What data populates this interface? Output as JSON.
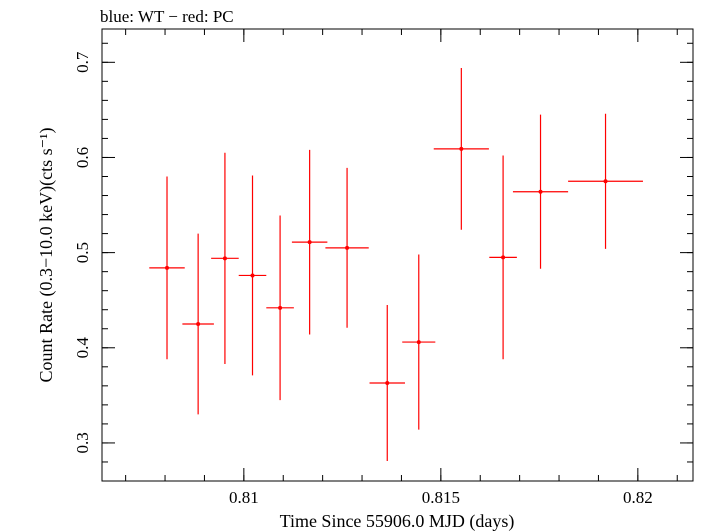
{
  "chart_data": {
    "type": "scatter",
    "title": "blue: WT − red: PC",
    "xlabel": "Time Since 55906.0 MJD (days)",
    "ylabel": "Count Rate (0.3−10.0 keV)(cts s⁻¹)",
    "xlim": [
      0.8064,
      0.8214
    ],
    "ylim": [
      0.26,
      0.735
    ],
    "xticks": [
      {
        "value": 0.81,
        "label": "0.81"
      },
      {
        "value": 0.815,
        "label": "0.815"
      },
      {
        "value": 0.82,
        "label": "0.82"
      }
    ],
    "yticks": [
      {
        "value": 0.3,
        "label": "0.3"
      },
      {
        "value": 0.4,
        "label": "0.4"
      },
      {
        "value": 0.5,
        "label": "0.5"
      },
      {
        "value": 0.6,
        "label": "0.6"
      },
      {
        "value": 0.7,
        "label": "0.7"
      }
    ],
    "x_minor_step": 0.001,
    "y_minor_step": 0.02,
    "grid": false,
    "series": [
      {
        "color": "#ff0000",
        "points": [
          {
            "x": 0.80805,
            "xerr_low": 0.00045,
            "xerr_high": 0.00045,
            "y": 0.484,
            "yerr_low": 0.096,
            "yerr_high": 0.096
          },
          {
            "x": 0.80884,
            "xerr_low": 0.0004,
            "xerr_high": 0.0004,
            "y": 0.425,
            "yerr_low": 0.095,
            "yerr_high": 0.095
          },
          {
            "x": 0.80952,
            "xerr_low": 0.00035,
            "xerr_high": 0.00035,
            "y": 0.494,
            "yerr_low": 0.111,
            "yerr_high": 0.111
          },
          {
            "x": 0.81022,
            "xerr_low": 0.00035,
            "xerr_high": 0.00035,
            "y": 0.476,
            "yerr_low": 0.105,
            "yerr_high": 0.105
          },
          {
            "x": 0.81092,
            "xerr_low": 0.00035,
            "xerr_high": 0.00035,
            "y": 0.442,
            "yerr_low": 0.097,
            "yerr_high": 0.097
          },
          {
            "x": 0.81167,
            "xerr_low": 0.00045,
            "xerr_high": 0.00045,
            "y": 0.511,
            "yerr_low": 0.097,
            "yerr_high": 0.097
          },
          {
            "x": 0.81262,
            "xerr_low": 0.00055,
            "xerr_high": 0.00055,
            "y": 0.505,
            "yerr_low": 0.084,
            "yerr_high": 0.084
          },
          {
            "x": 0.81364,
            "xerr_low": 0.00045,
            "xerr_high": 0.00045,
            "y": 0.363,
            "yerr_low": 0.082,
            "yerr_high": 0.082
          },
          {
            "x": 0.81444,
            "xerr_low": 0.00042,
            "xerr_high": 0.00042,
            "y": 0.406,
            "yerr_low": 0.092,
            "yerr_high": 0.092
          },
          {
            "x": 0.81552,
            "xerr_low": 0.0007,
            "xerr_high": 0.0007,
            "y": 0.609,
            "yerr_low": 0.085,
            "yerr_high": 0.085
          },
          {
            "x": 0.81658,
            "xerr_low": 0.00035,
            "xerr_high": 0.00035,
            "y": 0.495,
            "yerr_low": 0.107,
            "yerr_high": 0.107
          },
          {
            "x": 0.81753,
            "xerr_low": 0.0007,
            "xerr_high": 0.0007,
            "y": 0.564,
            "yerr_low": 0.081,
            "yerr_high": 0.081
          },
          {
            "x": 0.81918,
            "xerr_low": 0.00095,
            "xerr_high": 0.00095,
            "y": 0.575,
            "yerr_low": 0.071,
            "yerr_high": 0.071
          }
        ]
      }
    ]
  }
}
